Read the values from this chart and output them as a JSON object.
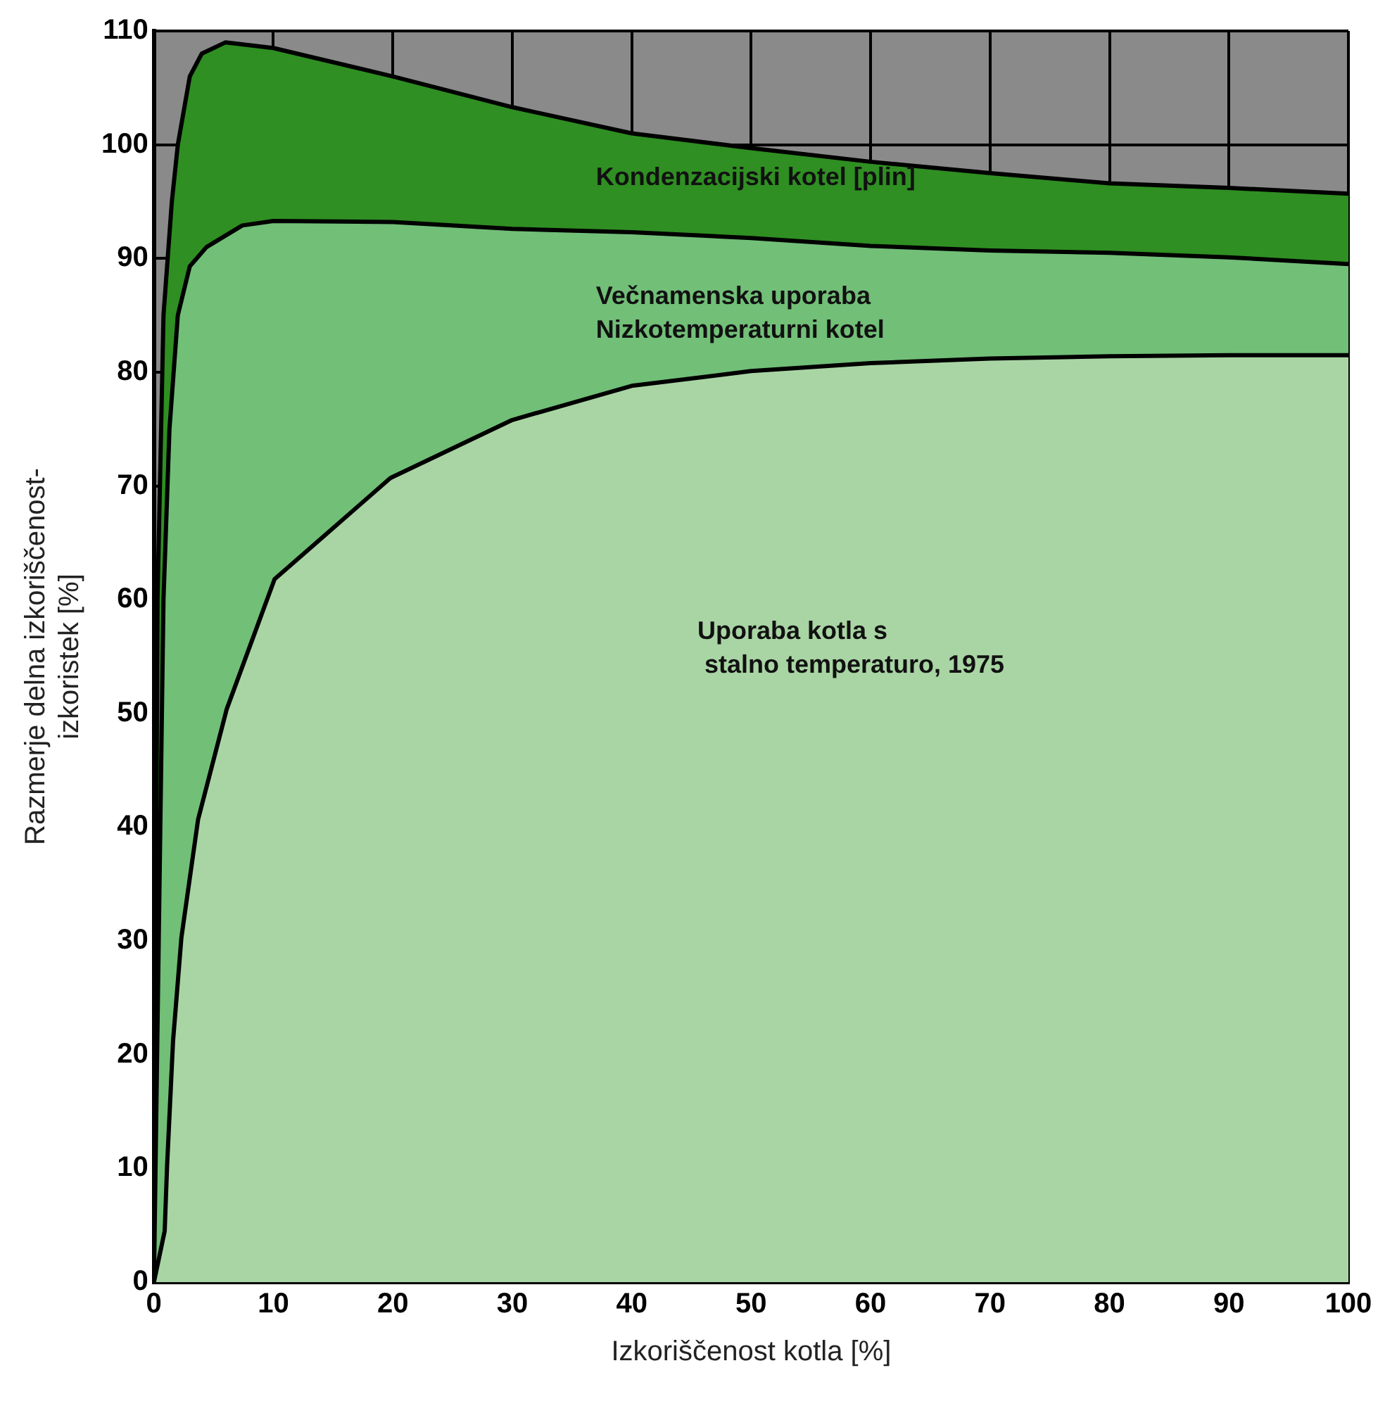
{
  "chart_data": {
    "type": "area",
    "xlabel": "Izkoriščenost kotla [%]",
    "ylabel": "Razmerje delna izkoriščenost-\nizkoristek [%]",
    "xlim": [
      0,
      100
    ],
    "xticks": [
      0,
      10,
      20,
      30,
      40,
      50,
      60,
      70,
      80,
      90,
      100
    ],
    "ylim": [
      0,
      110
    ],
    "yticks": [
      0,
      10,
      20,
      30,
      40,
      50,
      60,
      70,
      80,
      90,
      100,
      110
    ],
    "grid": true,
    "legend": false,
    "series": [
      {
        "name": "Kondenzacijski kotel [plin]",
        "color": "#2f8f22",
        "x": [
          0,
          0.3,
          0.8,
          1.5,
          2,
          3,
          4,
          6,
          10,
          20,
          30,
          40,
          50,
          60,
          70,
          80,
          90,
          100
        ],
        "values": [
          0,
          60,
          85,
          95,
          100,
          106,
          108,
          109,
          108.5,
          106,
          103.3,
          101,
          99.7,
          98.5,
          97.5,
          96.6,
          96.2,
          95.7
        ]
      },
      {
        "name": "Večnamenska uporaba\nNizkotemperaturni kotel",
        "color": "#72bf78",
        "x": [
          0,
          0.4,
          0.8,
          1.3,
          2,
          3,
          4.4,
          7.4,
          10,
          20,
          30,
          40,
          50,
          60,
          70,
          80,
          90,
          100
        ],
        "values": [
          0,
          30,
          60,
          75,
          85,
          89.3,
          91,
          92.9,
          93.3,
          93.2,
          92.6,
          92.3,
          91.8,
          91.1,
          90.7,
          90.5,
          90.1,
          89.5
        ]
      },
      {
        "name": "Uporaba kotla s\n stalno temperaturo, 1975",
        "color": "#a9d5a4",
        "x": [
          0,
          0.9,
          1.1,
          1.6,
          2.3,
          3.7,
          6.1,
          10.1,
          19.8,
          30,
          40,
          50,
          60,
          70,
          80,
          90,
          100
        ],
        "values": [
          0,
          4.5,
          10.2,
          21.2,
          30.3,
          40.7,
          50.4,
          61.8,
          70.7,
          75.8,
          78.8,
          80.1,
          80.8,
          81.2,
          81.4,
          81.5,
          81.5
        ]
      }
    ]
  }
}
